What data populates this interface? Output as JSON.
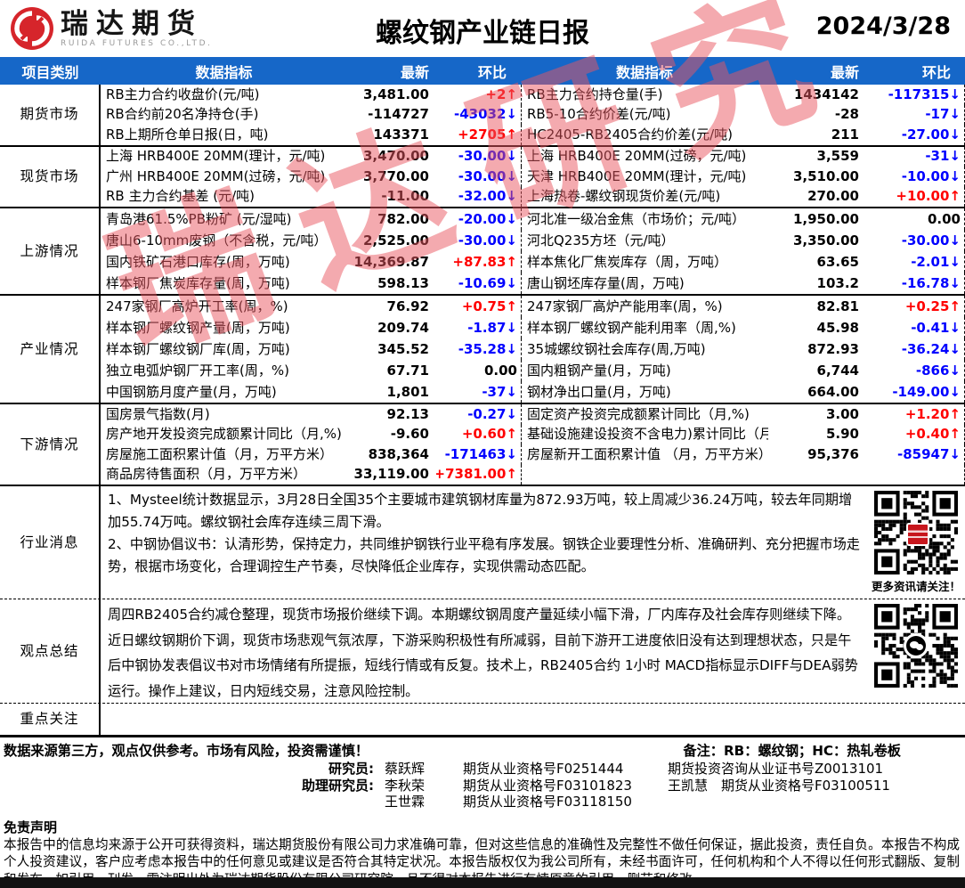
{
  "watermark": "瑞达研究",
  "header": {
    "brand_cn": "瑞达期货",
    "brand_en": "RUIDA FUTURES CO.,LTD.",
    "title": "螺纹钢产业链日报",
    "date": "2024/3/28"
  },
  "table": {
    "columns": [
      "项目类别",
      "数据指标",
      "最新",
      "环比",
      "数据指标",
      "最新",
      "环比"
    ],
    "sections": [
      {
        "category": "期货市场",
        "rows": [
          {
            "l_name": "RB主力合约收盘价(元/吨)",
            "l_val": "3,481.00",
            "l_chg": "+2↑",
            "l_dir": "up",
            "r_name": "RB主力合约持仓量(手)",
            "r_val": "1434142",
            "r_chg": "-117315↓",
            "r_dir": "down"
          },
          {
            "l_name": "RB合约前20名净持仓(手)",
            "l_val": "-114727",
            "l_chg": "-43032↓",
            "l_dir": "down",
            "r_name": "RB5-10合约价差(元/吨)",
            "r_val": "-28",
            "r_chg": "-17↓",
            "r_dir": "down"
          },
          {
            "l_name": "RB上期所仓单日报(日，吨)",
            "l_val": "143371",
            "l_chg": "+2705↑",
            "l_dir": "up",
            "r_name": "HC2405-RB2405合约价差(元/吨)",
            "r_val": "211",
            "r_chg": "-27.00↓",
            "r_dir": "down"
          }
        ]
      },
      {
        "category": "现货市场",
        "rows": [
          {
            "l_name": "上海 HRB400E 20MM(理计，元/吨)",
            "l_val": "3,470.00",
            "l_chg": "-30.00↓",
            "l_dir": "down",
            "r_name": "上海 HRB400E 20MM(过磅，元/吨)",
            "r_val": "3,559",
            "r_chg": "-31↓",
            "r_dir": "down"
          },
          {
            "l_name": "广州 HRB400E 20MM(过磅，元/吨)",
            "l_val": "3,770.00",
            "l_chg": "-30.00↓",
            "l_dir": "down",
            "r_name": "天津 HRB400E 20MM(理计，元/吨)",
            "r_val": "3,510.00",
            "r_chg": "-10.00↓",
            "r_dir": "down"
          },
          {
            "l_name": "RB 主力合约基差 (元/吨)",
            "l_val": "-11.00",
            "l_chg": "-32.00↓",
            "l_dir": "down",
            "r_name": "上海热卷-螺纹钢现货价差(元/吨)",
            "r_val": "270.00",
            "r_chg": "+10.00↑",
            "r_dir": "up"
          }
        ]
      },
      {
        "category": "上游情况",
        "rows": [
          {
            "l_name": "青岛港61.5%PB粉矿 (元/湿吨)",
            "l_val": "782.00",
            "l_chg": "-20.00↓",
            "l_dir": "down",
            "r_name": "河北准一级冶金焦（市场价；元/吨）",
            "r_val": "1,950.00",
            "r_chg": "0.00",
            "r_dir": "flat"
          },
          {
            "l_name": "唐山6-10mm废钢（不含税，元/吨）",
            "l_val": "2,525.00",
            "l_chg": "-30.00↓",
            "l_dir": "down",
            "r_name": "河北Q235方坯（元/吨）",
            "r_val": "3,350.00",
            "r_chg": "-30.00↓",
            "r_dir": "down"
          },
          {
            "l_name": "国内铁矿石港口库存(周，万吨)",
            "l_val": "14,369.87",
            "l_chg": "+87.83↑",
            "l_dir": "up",
            "r_name": "样本焦化厂焦炭库存（周，万吨）",
            "r_val": "63.65",
            "r_chg": "-2.01↓",
            "r_dir": "down"
          },
          {
            "l_name": "样本钢厂焦炭库存量(周，万吨)",
            "l_val": "598.13",
            "l_chg": "-10.69↓",
            "l_dir": "down",
            "r_name": "唐山钢坯库存量(周，万吨)",
            "r_val": "103.2",
            "r_chg": "-16.78↓",
            "r_dir": "down"
          }
        ]
      },
      {
        "category": "产业情况",
        "rows": [
          {
            "l_name": "247家钢厂高炉开工率(周，%)",
            "l_val": "76.92",
            "l_chg": "+0.75↑",
            "l_dir": "up",
            "r_name": "247家钢厂高炉产能用率(周，%)",
            "r_val": "82.81",
            "r_chg": "+0.25↑",
            "r_dir": "up"
          },
          {
            "l_name": "样本钢厂螺纹钢产量(周，万吨)",
            "l_val": "209.74",
            "l_chg": "-1.87↓",
            "l_dir": "down",
            "r_name": "样本钢厂螺纹钢产能利用率（周,%)",
            "r_val": "45.98",
            "r_chg": "-0.41↓",
            "r_dir": "down"
          },
          {
            "l_name": "样本钢厂螺纹钢厂库(周，万吨)",
            "l_val": "345.52",
            "l_chg": "-35.28↓",
            "l_dir": "down",
            "r_name": "35城螺纹钢社会库存(周,万吨)",
            "r_val": "872.93",
            "r_chg": "-36.24↓",
            "r_dir": "down"
          },
          {
            "l_name": "独立电弧炉钢厂开工率(周，%)",
            "l_val": "67.71",
            "l_chg": "0.00",
            "l_dir": "flat",
            "r_name": "国内粗钢产量(月，万吨)",
            "r_val": "6,744",
            "r_chg": "-866↓",
            "r_dir": "down"
          },
          {
            "l_name": "中国钢筋月度产量(月，万吨)",
            "l_val": "1,801",
            "l_chg": "-37↓",
            "l_dir": "down",
            "r_name": "钢材净出口量(月，万吨)",
            "r_val": "664.00",
            "r_chg": "-149.00↓",
            "r_dir": "down"
          }
        ]
      },
      {
        "category": "下游情况",
        "rows": [
          {
            "l_name": "国房景气指数(月)",
            "l_val": "92.13",
            "l_chg": "-0.27↓",
            "l_dir": "down",
            "r_name": "固定资产投资完成额累计同比（月,%)",
            "r_val": "3.00",
            "r_chg": "+1.20↑",
            "r_dir": "up"
          },
          {
            "l_name": "房产地开发投资完成额累计同比（月,%)",
            "l_val": "-9.60",
            "l_chg": "+0.60↑",
            "l_dir": "up",
            "r_name": "基础设施建设投资不含电力)累计同比（月,%",
            "r_val": "5.90",
            "r_chg": "+0.40↑",
            "r_dir": "up"
          },
          {
            "l_name": "房屋施工面积累计值（月，万平方米）",
            "l_val": "838,364",
            "l_chg": "-171463↓",
            "l_dir": "down",
            "r_name": "房屋新开工面积累计值 （月，万平方米）",
            "r_val": "95,376",
            "r_chg": "-85947↓",
            "r_dir": "down"
          },
          {
            "l_name": "商品房待售面积（月，万平方米）",
            "l_val": "33,119.00",
            "l_chg": "+7381.00↑",
            "l_dir": "up",
            "r_name": "",
            "r_val": "",
            "r_chg": "",
            "r_dir": "flat"
          }
        ]
      }
    ]
  },
  "news": {
    "category": "行业消息",
    "items": [
      "1、Mysteel统计数据显示，3月28日全国35个主要城市建筑钢材库量为872.93万吨，较上周减少36.24万吨，较去年同期增加55.74万吨。螺纹钢社会库存连续三周下滑。",
      "2、中钢协倡议书：认清形势，保持定力，共同维护钢铁行业平稳有序发展。钢铁企业要理性分析、准确研判、充分把握市场走势，根据市场变化，合理调控生产节奏，尽快降低企业库存，实现供需动态匹配。"
    ],
    "qr_caption": "更多资讯请关注！"
  },
  "summary": {
    "category": "观点总结",
    "text": "周四RB2405合约减仓整理，现货市场报价继续下调。本期螺纹钢周度产量延续小幅下滑，厂内库存及社会库存则继续下降。近日螺纹钢期价下调，现货市场悲观气氛浓厚，下游采购积极性有所减弱，目前下游开工进度依旧没有达到理想状态，只是午后中钢协发表倡议书对市场情绪有所提振，短线行情或有反复。技术上，RB2405合约 1小时 MACD指标显示DIFF与DEA弱势运行。操作上建议，日内短线交易，注意风险控制。"
  },
  "focus": {
    "category": "重点关注"
  },
  "footer": {
    "risk_note": "数据来源第三方，观点仅供参考。市场有风险，投资需谨慎！",
    "remark": "备注：RB：螺纹钢；HC：热轧卷板",
    "researchers": [
      {
        "label": "研究员:",
        "name": "蔡跃辉",
        "cert": "期货从业资格号F0251444",
        "right": "期货投资咨询从业证书号Z0013101"
      },
      {
        "label": "助理研究员:",
        "name": "李秋荣",
        "cert": "期货从业资格号F03101823",
        "right": "王凯慧　期货从业资格号F03100511"
      },
      {
        "label": "",
        "name": "王世霖",
        "cert": "期货从业资格号F03118150",
        "right": ""
      }
    ],
    "disclaimer_title": "免责声明",
    "disclaimer_text": "本报告中的信息均来源于公开可获得资料，瑞达期货股份有限公司力求准确可靠，但对这些信息的准确性及完整性不做任何保证，据此投资，责任自负。本报告不构成个人投资建议，客户应考虑本报告中的任何意见或建议是否符合其特定状况。本报告版权仅为我公司所有，未经书面许可，任何机构和个人不得以任何形式翻版、复制和发布。如引用、刊发，需注明出处为瑞达期货股份有限公司研究院，且不得对本报告进行有悖原意的引用、删节和修改。"
  },
  "colors": {
    "header_blue": "#1667c8",
    "up_red": "#ff0000",
    "down_blue": "#0000ff",
    "brand_red": "#d6252b"
  }
}
